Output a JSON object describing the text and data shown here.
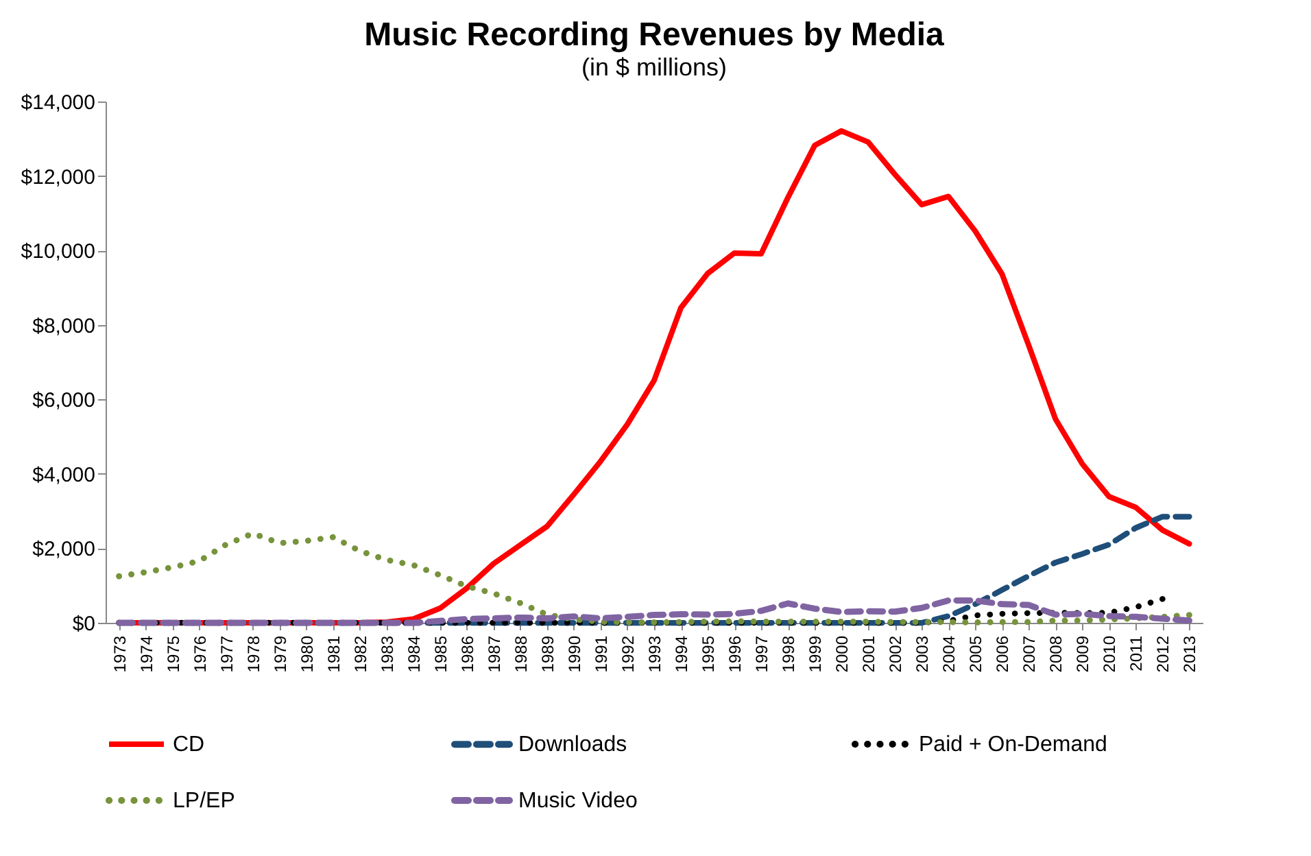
{
  "chart_data": {
    "type": "line",
    "title": "Music Recording Revenues by Media",
    "subtitle": "(in $ millions)",
    "categories": [
      "1973",
      "1974",
      "1975",
      "1976",
      "1977",
      "1978",
      "1979",
      "1980",
      "1981",
      "1982",
      "1983",
      "1984",
      "1985",
      "1986",
      "1987",
      "1988",
      "1989",
      "1990",
      "1991",
      "1992",
      "1993",
      "1994",
      "1995",
      "1996",
      "1997",
      "1998",
      "1999",
      "2000",
      "2001",
      "2002",
      "2003",
      "2004",
      "2005",
      "2006",
      "2007",
      "2008",
      "2009",
      "2010",
      "2011",
      "2012",
      "2013"
    ],
    "ylim": [
      0,
      14000
    ],
    "yticks": [
      {
        "value": 0,
        "label": "$0"
      },
      {
        "value": 2000,
        "label": "$2,000"
      },
      {
        "value": 4000,
        "label": "$4,000"
      },
      {
        "value": 6000,
        "label": "$6,000"
      },
      {
        "value": 8000,
        "label": "$8,000"
      },
      {
        "value": 10000,
        "label": "$10,000"
      },
      {
        "value": 12000,
        "label": "$12,000"
      },
      {
        "value": 14000,
        "label": "$14,000"
      }
    ],
    "grid": false,
    "legend": "bottom",
    "series": [
      {
        "name": "CD",
        "color": "#ff0000",
        "line_style": "solid",
        "values": [
          0,
          0,
          0,
          0,
          0,
          0,
          0,
          0,
          0,
          0,
          20,
          100,
          390,
          930,
          1590,
          2090,
          2590,
          3450,
          4340,
          5330,
          6510,
          8460,
          9380,
          9930,
          9910,
          11420,
          12820,
          13210,
          12910,
          12040,
          11230,
          11450,
          10520,
          9370,
          7450,
          5470,
          4270,
          3390,
          3100,
          2490,
          2120
        ]
      },
      {
        "name": "Downloads",
        "color": "#1f4e79",
        "line_style": "dashed",
        "values": [
          0,
          0,
          0,
          0,
          0,
          0,
          0,
          0,
          0,
          0,
          0,
          0,
          0,
          0,
          0,
          0,
          0,
          0,
          0,
          0,
          0,
          0,
          0,
          0,
          0,
          0,
          0,
          0,
          0,
          0,
          0,
          180,
          500,
          880,
          1260,
          1620,
          1850,
          2100,
          2550,
          2850,
          2850
        ]
      },
      {
        "name": "Paid + On-Demand",
        "color": "#000000",
        "line_style": "dotted",
        "values": [
          0,
          0,
          0,
          0,
          0,
          0,
          0,
          0,
          0,
          0,
          0,
          0,
          0,
          0,
          0,
          0,
          0,
          0,
          0,
          0,
          0,
          0,
          0,
          0,
          0,
          0,
          0,
          0,
          0,
          0,
          0,
          50,
          200,
          240,
          260,
          270,
          260,
          270,
          420,
          640,
          null
        ]
      },
      {
        "name": "LP/EP",
        "color": "#77933c",
        "line_style": "dotted",
        "values": [
          1250,
          1360,
          1490,
          1660,
          2100,
          2400,
          2140,
          2200,
          2300,
          1930,
          1690,
          1550,
          1280,
          980,
          790,
          530,
          220,
          90,
          30,
          10,
          10,
          20,
          30,
          40,
          30,
          30,
          30,
          30,
          30,
          20,
          20,
          20,
          10,
          20,
          20,
          60,
          60,
          90,
          120,
          160,
          210
        ]
      },
      {
        "name": "Music Video",
        "color": "#8064a2",
        "line_style": "dashed",
        "values": [
          0,
          0,
          0,
          0,
          0,
          0,
          0,
          0,
          0,
          0,
          0,
          0,
          50,
          100,
          120,
          140,
          120,
          170,
          120,
          160,
          210,
          230,
          220,
          240,
          320,
          520,
          380,
          290,
          310,
          300,
          400,
          600,
          600,
          500,
          480,
          220,
          240,
          180,
          160,
          110,
          60
        ]
      }
    ]
  }
}
